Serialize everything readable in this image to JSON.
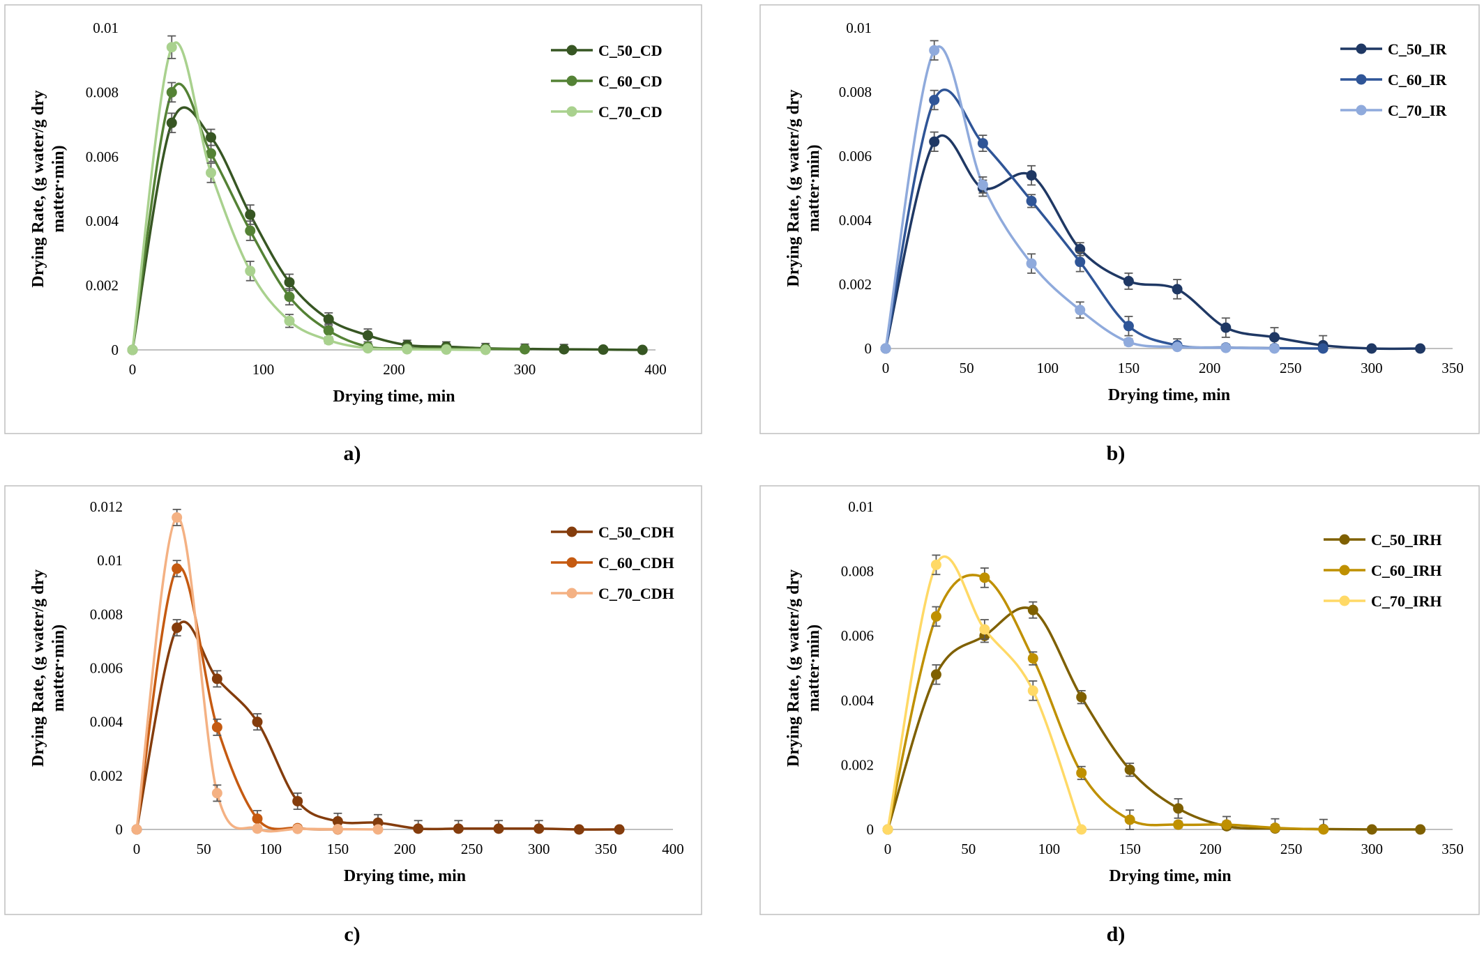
{
  "colors": {
    "frame": "#bfbfbf",
    "axis": "#bfbfbf",
    "error_bar": "#595959"
  },
  "chart_data": [
    {
      "type": "scatter",
      "panel_label": "a)",
      "xlabel": "Drying  time, min",
      "ylabel_lines": [
        "Drying  Rate, (g water/g dry",
        "matter·min)"
      ],
      "xlim": [
        0,
        400
      ],
      "ylim": [
        0,
        0.01
      ],
      "xticks": [
        0,
        100,
        200,
        300,
        400
      ],
      "yticks": [
        0,
        0.002,
        0.004,
        0.006,
        0.008,
        0.01
      ],
      "ytick_labels": [
        "0",
        "0.002",
        "0.004",
        "0.006",
        "0.008",
        "0.01"
      ],
      "legend_position": "top-right",
      "series": [
        {
          "name": "C_50_CD",
          "color": "#375623",
          "x": [
            0,
            30,
            60,
            90,
            120,
            150,
            180,
            210,
            240,
            270,
            300,
            330,
            360,
            390
          ],
          "y": [
            0,
            0.00705,
            0.0066,
            0.0042,
            0.0021,
            0.00095,
            0.00045,
            0.00015,
            0.0001,
            5e-05,
            3e-05,
            2e-05,
            1e-05,
            0
          ],
          "err": [
            0,
            0.0003,
            0.00025,
            0.0003,
            0.00025,
            0.0002,
            0.0002,
            0.00015,
            0.00015,
            0.00015,
            0.00015,
            0.00015,
            5e-05,
            0
          ]
        },
        {
          "name": "C_60_CD",
          "color": "#548235",
          "x": [
            0,
            30,
            60,
            90,
            120,
            150,
            180,
            210,
            240,
            270,
            300
          ],
          "y": [
            0,
            0.008,
            0.0061,
            0.0037,
            0.00165,
            0.0006,
            0.0001,
            5e-05,
            4e-05,
            3e-05,
            2e-05
          ],
          "err": [
            0,
            0.0003,
            0.00025,
            0.0003,
            0.00025,
            0.0002,
            0.0001,
            0.0001,
            0.0001,
            0.0001,
            0.0001
          ]
        },
        {
          "name": "C_70_CD",
          "color": "#a9d18e",
          "x": [
            0,
            30,
            60,
            90,
            120,
            150,
            180,
            210,
            240,
            270
          ],
          "y": [
            0,
            0.0094,
            0.0055,
            0.00245,
            0.0009,
            0.0003,
            5e-05,
            2e-05,
            1e-05,
            0
          ],
          "err": [
            0,
            0.00035,
            0.0003,
            0.0003,
            0.0002,
            0.0001,
            5e-05,
            5e-05,
            5e-05,
            0
          ]
        }
      ]
    },
    {
      "type": "scatter",
      "panel_label": "b)",
      "xlabel": "Drying  time, min",
      "ylabel_lines": [
        "Drying  Rate, (g water/g dry",
        "matter·min)"
      ],
      "xlim": [
        0,
        350
      ],
      "ylim": [
        0,
        0.01
      ],
      "xticks": [
        0,
        50,
        100,
        150,
        200,
        250,
        300,
        350
      ],
      "yticks": [
        0,
        0.002,
        0.004,
        0.006,
        0.008,
        0.01
      ],
      "ytick_labels": [
        "0",
        "0.002",
        "0.004",
        "0.006",
        "0.008",
        "0.01"
      ],
      "legend_position": "top-right",
      "series": [
        {
          "name": "C_50_IR",
          "color": "#1f3864",
          "x": [
            0,
            30,
            60,
            90,
            120,
            150,
            180,
            210,
            240,
            270,
            300,
            330
          ],
          "y": [
            0,
            0.00645,
            0.005,
            0.0054,
            0.0031,
            0.0021,
            0.00185,
            0.00065,
            0.00035,
            0.0001,
            0,
            0
          ],
          "err": [
            0,
            0.0003,
            0.00025,
            0.0003,
            0.0002,
            0.00025,
            0.0003,
            0.0003,
            0.0003,
            0.0003,
            0,
            0
          ]
        },
        {
          "name": "C_60_IR",
          "color": "#2f5597",
          "x": [
            0,
            30,
            60,
            90,
            120,
            150,
            180,
            210,
            240,
            270
          ],
          "y": [
            0,
            0.00775,
            0.0064,
            0.0046,
            0.0027,
            0.0007,
            0.0001,
            3e-05,
            1e-05,
            0
          ],
          "err": [
            0,
            0.0003,
            0.00025,
            0.0002,
            0.0003,
            0.0003,
            0.0002,
            0.0001,
            0.0001,
            0
          ]
        },
        {
          "name": "C_70_IR",
          "color": "#8faadc",
          "x": [
            0,
            30,
            60,
            90,
            120,
            150,
            180,
            210,
            240
          ],
          "y": [
            0,
            0.0093,
            0.0051,
            0.00265,
            0.0012,
            0.0002,
            5e-05,
            2e-05,
            0
          ],
          "err": [
            0,
            0.0003,
            0.00025,
            0.0003,
            0.00025,
            0.0001,
            5e-05,
            5e-05,
            0
          ]
        }
      ]
    },
    {
      "type": "scatter",
      "panel_label": "c)",
      "xlabel": "Drying  time, min",
      "ylabel_lines": [
        "Drying  Rate, (g water/g dry",
        "matter·min)"
      ],
      "xlim": [
        0,
        400
      ],
      "ylim": [
        0,
        0.012
      ],
      "xticks": [
        0,
        50,
        100,
        150,
        200,
        250,
        300,
        350,
        400
      ],
      "yticks": [
        0,
        0.002,
        0.004,
        0.006,
        0.008,
        0.01,
        0.012
      ],
      "ytick_labels": [
        "0",
        "0.002",
        "0.004",
        "0.006",
        "0.008",
        "0.01",
        "0.012"
      ],
      "legend_position": "top-right",
      "series": [
        {
          "name": "C_50_CDH",
          "color": "#843c0c",
          "x": [
            0,
            30,
            60,
            90,
            120,
            150,
            180,
            210,
            240,
            270,
            300,
            330,
            360
          ],
          "y": [
            0,
            0.0075,
            0.0056,
            0.004,
            0.00105,
            0.0003,
            0.00025,
            3e-05,
            3e-05,
            3e-05,
            3e-05,
            0,
            0
          ],
          "err": [
            0,
            0.0003,
            0.0003,
            0.0003,
            0.0003,
            0.0003,
            0.0003,
            0.0003,
            0.0003,
            0.0003,
            0.0003,
            0,
            0
          ]
        },
        {
          "name": "C_60_CDH",
          "color": "#c55a11",
          "x": [
            0,
            30,
            60,
            90,
            120,
            150
          ],
          "y": [
            0,
            0.0097,
            0.0038,
            0.0004,
            5e-05,
            0
          ],
          "err": [
            0,
            0.0003,
            0.0003,
            0.0003,
            0.0001,
            0
          ]
        },
        {
          "name": "C_70_CDH",
          "color": "#f4b183",
          "x": [
            0,
            30,
            60,
            90,
            120,
            150,
            180
          ],
          "y": [
            0,
            0.0116,
            0.00135,
            3e-05,
            2e-05,
            1e-05,
            0
          ],
          "err": [
            0,
            0.0003,
            0.0003,
            0.0001,
            0.0001,
            0.0001,
            0
          ]
        }
      ]
    },
    {
      "type": "scatter",
      "panel_label": "d)",
      "xlabel": "Drying  time, min",
      "ylabel_lines": [
        "Drying  Rate, (g water/g dry",
        "matter·min)"
      ],
      "xlim": [
        0,
        350
      ],
      "ylim": [
        0,
        0.01
      ],
      "xticks": [
        0,
        50,
        100,
        150,
        200,
        250,
        300,
        350
      ],
      "yticks": [
        0,
        0.002,
        0.004,
        0.006,
        0.008,
        0.01
      ],
      "ytick_labels": [
        "0",
        "0.002",
        "0.004",
        "0.006",
        "0.008",
        "0.01"
      ],
      "legend_position": "top-right",
      "series": [
        {
          "name": "C_50_IRH",
          "color": "#7f6000",
          "x": [
            0,
            30,
            60,
            90,
            120,
            150,
            180,
            210,
            240,
            270,
            300,
            330
          ],
          "y": [
            0,
            0.0048,
            0.006,
            0.0068,
            0.0041,
            0.00185,
            0.00065,
            0.0001,
            3e-05,
            1e-05,
            0,
            0
          ],
          "err": [
            0,
            0.0003,
            0.0002,
            0.00025,
            0.0002,
            0.0002,
            0.0003,
            0.0003,
            0.0003,
            0.0003,
            0,
            0
          ]
        },
        {
          "name": "C_60_IRH",
          "color": "#bf9000",
          "x": [
            0,
            30,
            60,
            90,
            120,
            150,
            180,
            210,
            240,
            270
          ],
          "y": [
            0,
            0.0066,
            0.0078,
            0.0053,
            0.00175,
            0.0003,
            0.00015,
            0.00015,
            5e-05,
            0
          ],
          "err": [
            0,
            0.0003,
            0.0003,
            0.0002,
            0.0002,
            0.0003,
            0.0001,
            0.0001,
            0.0001,
            0
          ]
        },
        {
          "name": "C_70_IRH",
          "color": "#ffd966",
          "x": [
            0,
            30,
            60,
            90,
            120
          ],
          "y": [
            0,
            0.0082,
            0.0062,
            0.0043,
            0
          ],
          "err": [
            0,
            0.0003,
            0.0003,
            0.0003,
            0
          ]
        }
      ]
    }
  ]
}
